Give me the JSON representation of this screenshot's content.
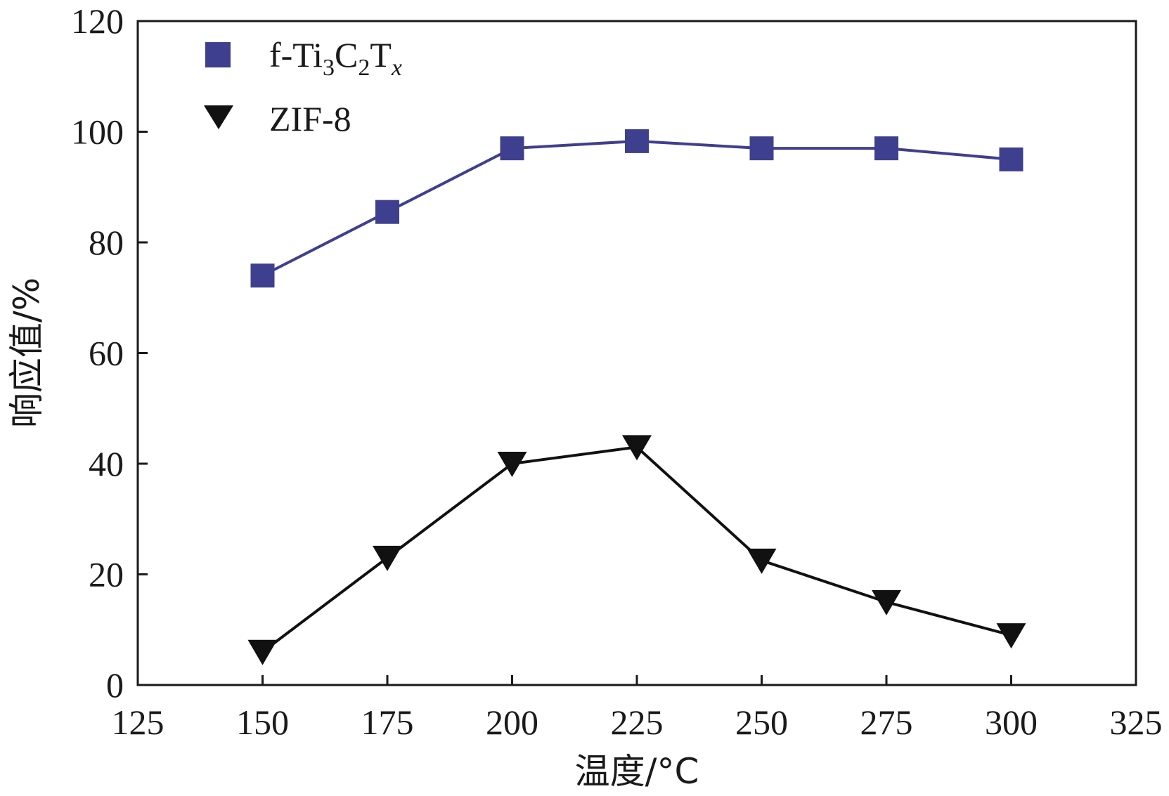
{
  "chart_data": {
    "type": "line",
    "title": "",
    "xlabel": "温度/°C",
    "ylabel": "响应值/%",
    "xlim": [
      125,
      325
    ],
    "ylim": [
      0,
      120
    ],
    "xticks": [
      125,
      150,
      175,
      200,
      225,
      250,
      275,
      300,
      325
    ],
    "yticks": [
      0,
      20,
      40,
      60,
      80,
      100,
      120
    ],
    "grid": false,
    "legend_position": "top-left",
    "series": [
      {
        "name": "f-Ti3C2Tx",
        "legend_label": {
          "base": "f-Ti",
          "sub1": "3",
          "mid1": "C",
          "sub2": "2",
          "mid2": "T",
          "sub3": "x"
        },
        "marker": "square",
        "color": "#3f3f8f",
        "x": [
          150,
          175,
          200,
          225,
          250,
          275,
          300
        ],
        "y": [
          74,
          85.5,
          97,
          98.3,
          97,
          97,
          95
        ]
      },
      {
        "name": "ZIF-8",
        "marker": "triangle-down",
        "color": "#111111",
        "x": [
          150,
          175,
          200,
          225,
          250,
          275,
          300
        ],
        "y": [
          6,
          23,
          40,
          43,
          22.5,
          15,
          9
        ]
      }
    ]
  }
}
